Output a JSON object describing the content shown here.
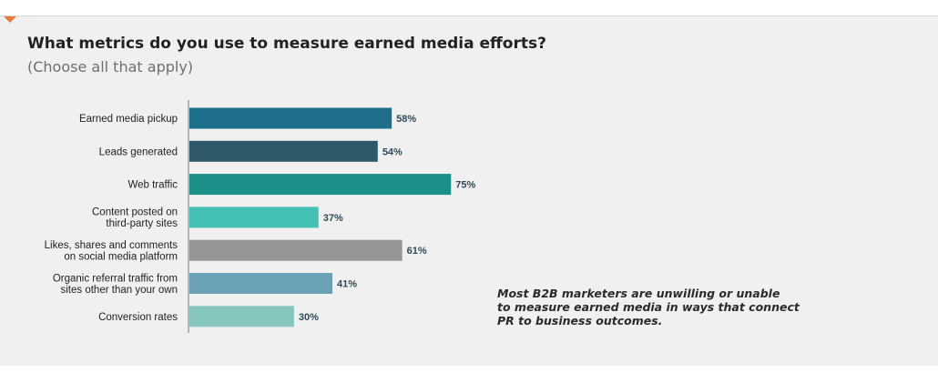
{
  "header": {
    "title": "What metrics do you use to measure earned media efforts?",
    "subtitle": "(Choose all that apply)"
  },
  "note": "Most B2B marketers are unwilling or unable\nto measure earned media in ways that connect\nPR to business outcomes.",
  "chart_data": {
    "type": "bar",
    "orientation": "horizontal",
    "unit": "%",
    "categories": [
      [
        "Earned media pickup"
      ],
      [
        "Leads generated"
      ],
      [
        "Web traffic"
      ],
      [
        "Content posted on",
        "third-party sites"
      ],
      [
        "Likes, shares and comments",
        "on social media platform"
      ],
      [
        "Organic referral traffic from",
        "sites other than your own"
      ],
      [
        "Conversion rates"
      ]
    ],
    "values": [
      58,
      54,
      75,
      37,
      61,
      41,
      30
    ],
    "labels": [
      "58%",
      "54%",
      "75%",
      "37%",
      "61%",
      "41%",
      "30%"
    ],
    "colors": [
      "#1e6f8c",
      "#2e5968",
      "#1a9088",
      "#44c0b4",
      "#969696",
      "#6aa1b4",
      "#86c6bf"
    ],
    "grid": false,
    "legend": "none"
  }
}
